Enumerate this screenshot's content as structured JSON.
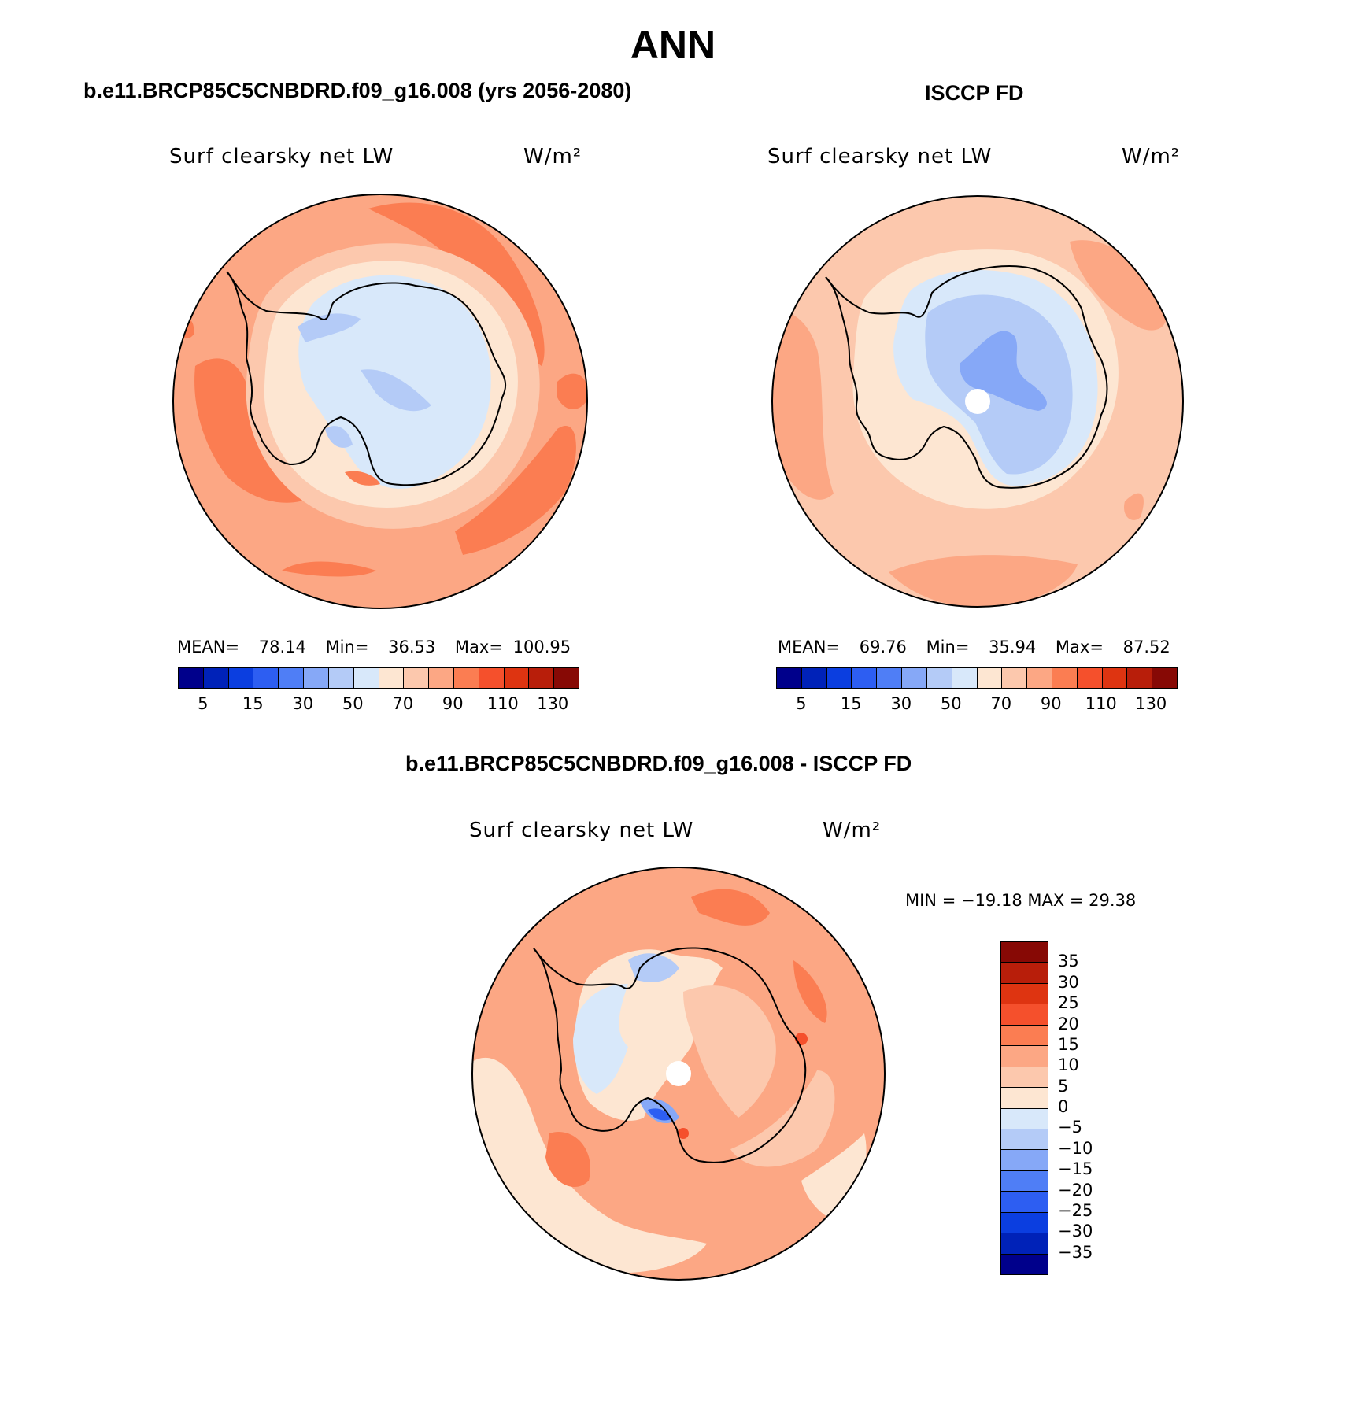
{
  "figure_title": "ANN",
  "panels": {
    "left": {
      "title": "b.e11.BRCP85C5CNBDRD.f09_g16.008 (yrs 2056-2080)",
      "variable": "Surf clearsky net LW",
      "units": "W/m²",
      "stats": {
        "mean_label": "MEAN=",
        "mean": "78.14",
        "min_label": "Min=",
        "min": "36.53",
        "max_label": "Max=",
        "max": "100.95"
      }
    },
    "right": {
      "title": "ISCCP FD",
      "variable": "Surf clearsky net LW",
      "units": "W/m²",
      "stats": {
        "mean_label": "MEAN=",
        "mean": "69.76",
        "min_label": "Min=",
        "min": "35.94",
        "max_label": "Max=",
        "max": "87.52"
      }
    },
    "diff": {
      "title": "b.e11.BRCP85C5CNBDRD.f09_g16.008 - ISCCP FD",
      "variable": "Surf clearsky net LW",
      "units": "W/m²",
      "minmax": "MIN = −19.18 MAX =   29.38"
    }
  },
  "colorbars": {
    "abs_colors": [
      "#00008b",
      "#0022b8",
      "#0b3ee0",
      "#2d5ef2",
      "#4f7ef6",
      "#86a8f7",
      "#b4cbf7",
      "#d8e8fa",
      "#fde6d2",
      "#fcc8ad",
      "#fca784",
      "#fb7d52",
      "#f5502c",
      "#de3411",
      "#b81e0a",
      "#870905"
    ],
    "abs_ticks": [
      "5",
      "15",
      "30",
      "50",
      "70",
      "90",
      "110",
      "130"
    ],
    "diff_colors": [
      "#870905",
      "#b81e0a",
      "#de3411",
      "#f5502c",
      "#fb7d52",
      "#fca784",
      "#fcc8ad",
      "#fde6d2",
      "#d8e8fa",
      "#b4cbf7",
      "#86a8f7",
      "#4f7ef6",
      "#2d5ef2",
      "#0b3ee0",
      "#0022b8",
      "#00008b"
    ],
    "diff_ticks": [
      "35",
      "30",
      "25",
      "20",
      "15",
      "10",
      "5",
      "0",
      "−5",
      "−10",
      "−15",
      "−20",
      "−25",
      "−30",
      "−35"
    ]
  }
}
